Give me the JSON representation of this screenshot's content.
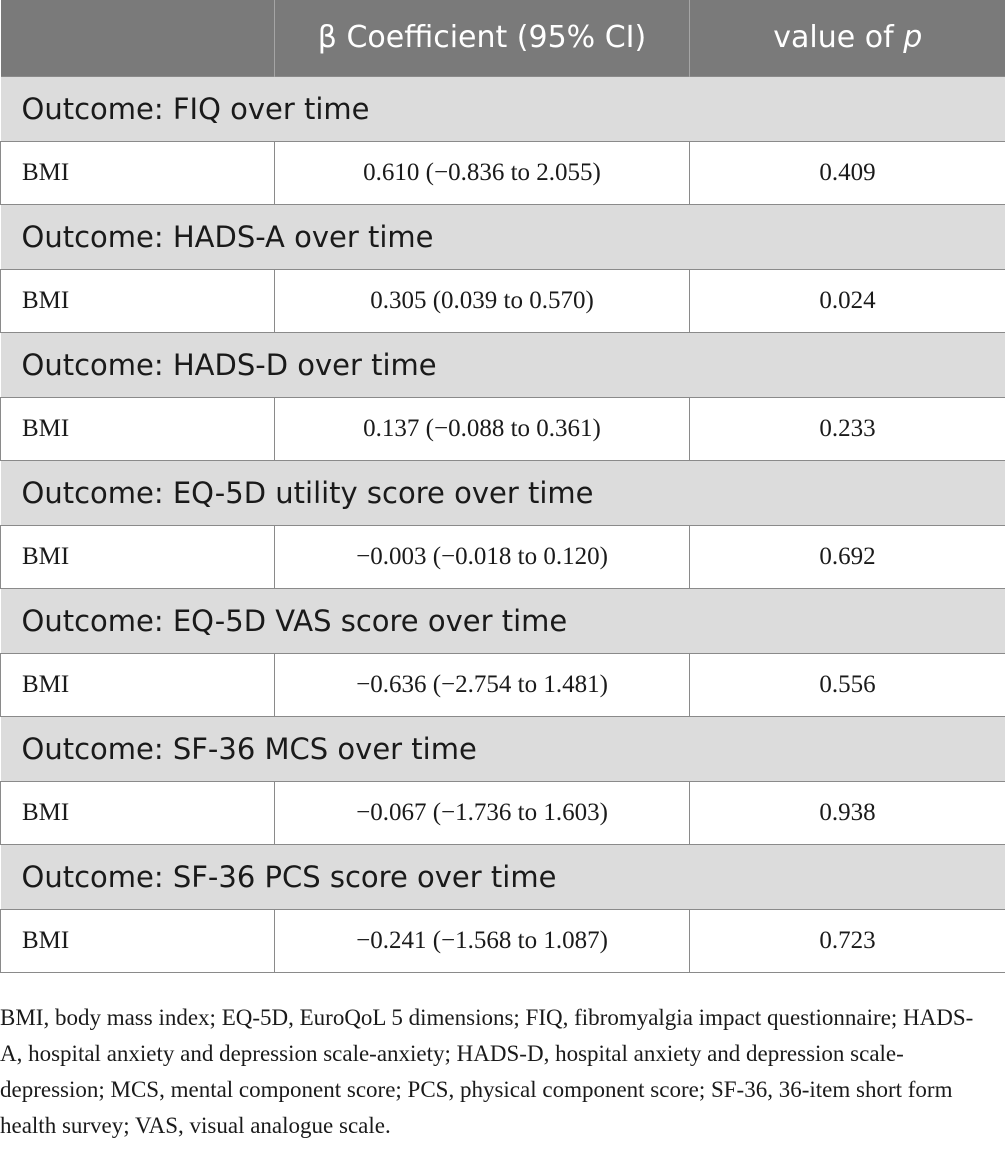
{
  "table": {
    "headers": {
      "blank": "",
      "beta": "β Coefficient (95% CI)",
      "pvalue_prefix": "value of ",
      "pvalue_symbol": "p"
    },
    "sections": [
      {
        "title": "Outcome: FIQ over time",
        "row": {
          "variable": "BMI",
          "beta": "0.610 (−0.836 to 2.055)",
          "p": "0.409"
        }
      },
      {
        "title": "Outcome: HADS-A over time",
        "row": {
          "variable": "BMI",
          "beta": "0.305 (0.039 to 0.570)",
          "p": "0.024"
        }
      },
      {
        "title": "Outcome: HADS-D over time",
        "row": {
          "variable": "BMI",
          "beta": "0.137 (−0.088 to 0.361)",
          "p": "0.233"
        }
      },
      {
        "title": "Outcome: EQ-5D utility score over time",
        "row": {
          "variable": "BMI",
          "beta": "−0.003 (−0.018 to 0.120)",
          "p": "0.692"
        }
      },
      {
        "title": "Outcome: EQ-5D VAS score over time",
        "row": {
          "variable": "BMI",
          "beta": "−0.636 (−2.754 to 1.481)",
          "p": "0.556"
        }
      },
      {
        "title": "Outcome: SF-36 MCS over time",
        "row": {
          "variable": "BMI",
          "beta": "−0.067 (−1.736 to 1.603)",
          "p": "0.938"
        }
      },
      {
        "title": "Outcome: SF-36 PCS score over time",
        "row": {
          "variable": "BMI",
          "beta": "−0.241 (−1.568 to 1.087)",
          "p": "0.723"
        }
      }
    ]
  },
  "footnote": "BMI, body mass index; EQ-5D, EuroQoL 5 dimensions; FIQ, fibromyalgia impact questionnaire; HADS-A, hospital anxiety and depression scale-anxiety; HADS-D, hospital anxiety and depression scale-depression; MCS, mental component score; PCS, physical component score; SF-36, 36-item short form health survey; VAS, visual analogue scale.",
  "colors": {
    "header_bg": "#7a7a7a",
    "section_bg": "#dcdcdc",
    "border": "#8a8a8a",
    "text": "#1a1a1a"
  }
}
